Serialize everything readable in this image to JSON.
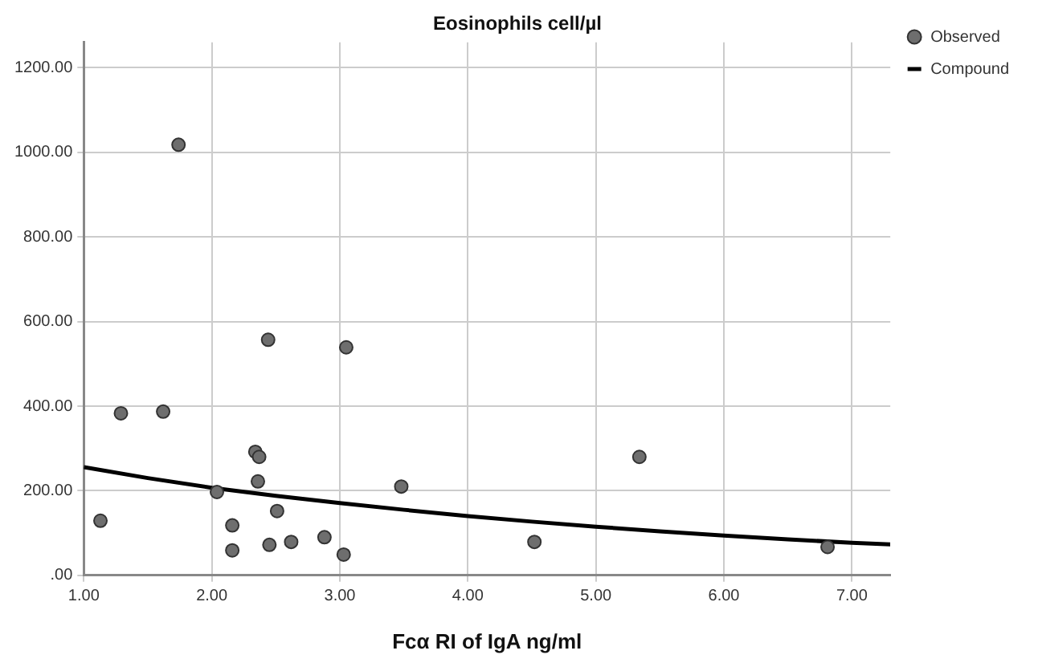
{
  "chart_data": {
    "type": "scatter",
    "title": "Eosinophils cell/µl",
    "xlabel": "Fcα RI of IgA ng/ml",
    "xlim": [
      1,
      7.3
    ],
    "ylim": [
      0,
      1260
    ],
    "xticks": [
      {
        "value": 1,
        "label": "1.00"
      },
      {
        "value": 2,
        "label": "2.00"
      },
      {
        "value": 3,
        "label": "3.00"
      },
      {
        "value": 4,
        "label": "4.00"
      },
      {
        "value": 5,
        "label": "5.00"
      },
      {
        "value": 6,
        "label": "6.00"
      },
      {
        "value": 7,
        "label": "7.00"
      }
    ],
    "yticks": [
      {
        "value": 0,
        "label": ".00"
      },
      {
        "value": 200,
        "label": "200.00"
      },
      {
        "value": 400,
        "label": "400.00"
      },
      {
        "value": 600,
        "label": "600.00"
      },
      {
        "value": 800,
        "label": "800.00"
      },
      {
        "value": 1000,
        "label": "1000.00"
      },
      {
        "value": 1200,
        "label": "1200.00"
      }
    ],
    "grid": true,
    "legend": "top right",
    "series": [
      {
        "name": "Observed",
        "marker": "circle",
        "color": "#6e6e6e",
        "x": [
          1.13,
          1.29,
          1.62,
          1.74,
          2.04,
          2.16,
          2.16,
          2.34,
          2.37,
          2.36,
          2.44,
          2.45,
          2.51,
          2.62,
          2.88,
          3.03,
          3.05,
          3.48,
          4.52,
          5.34,
          6.81
        ],
        "values": [
          129,
          383,
          387,
          1018,
          197,
          118,
          59,
          292,
          280,
          222,
          557,
          72,
          152,
          79,
          90,
          49,
          539,
          210,
          79,
          280,
          67
        ]
      },
      {
        "name": "Compound",
        "type": "line",
        "color": "#000000",
        "line_style": "solid",
        "x": [
          1,
          1.5,
          2,
          2.5,
          3,
          3.5,
          4,
          4.5,
          5,
          5.5,
          6,
          6.5,
          7,
          7.3
        ],
        "values": [
          256,
          230,
          207,
          188,
          171,
          155,
          140,
          127,
          115,
          104,
          94,
          85,
          77,
          73
        ]
      }
    ]
  }
}
